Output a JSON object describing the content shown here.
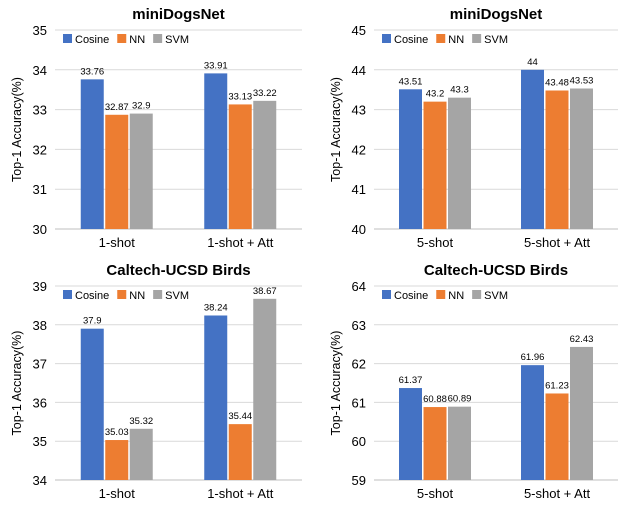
{
  "chart_data": [
    {
      "type": "bar",
      "title": "miniDogsNet",
      "ylabel": "Top-1 Accuracy(%)",
      "categories": [
        "1-shot",
        "1-shot + Att"
      ],
      "ylim": [
        30,
        35
      ],
      "yticks": [
        30,
        31,
        32,
        33,
        34,
        35
      ],
      "series": [
        {
          "name": "Cosine",
          "values": [
            33.76,
            33.91
          ],
          "labels": [
            "33.76",
            "33.91"
          ]
        },
        {
          "name": "NN",
          "values": [
            32.87,
            33.13
          ],
          "labels": [
            "32.87",
            "33.13"
          ]
        },
        {
          "name": "SVM",
          "values": [
            32.9,
            33.22
          ],
          "labels": [
            "32.9",
            "33.22"
          ]
        }
      ],
      "grid": true,
      "legend": "top-left"
    },
    {
      "type": "bar",
      "title": "miniDogsNet",
      "ylabel": "Top-1 Accuracy(%)",
      "categories": [
        "5-shot",
        "5-shot + Att"
      ],
      "ylim": [
        40,
        45
      ],
      "yticks": [
        40,
        41,
        42,
        43,
        44,
        45
      ],
      "series": [
        {
          "name": "Cosine",
          "values": [
            43.51,
            44
          ],
          "labels": [
            "43.51",
            "44"
          ]
        },
        {
          "name": "NN",
          "values": [
            43.2,
            43.48
          ],
          "labels": [
            "43.2",
            "43.48"
          ]
        },
        {
          "name": "SVM",
          "values": [
            43.3,
            43.53
          ],
          "labels": [
            "43.3",
            "43.53"
          ]
        }
      ],
      "grid": true,
      "legend": "top-left"
    },
    {
      "type": "bar",
      "title": "Caltech-UCSD Birds",
      "ylabel": "Top-1 Accuracy(%)",
      "categories": [
        "1-shot",
        "1-shot + Att"
      ],
      "ylim": [
        34,
        39
      ],
      "yticks": [
        34,
        35,
        36,
        37,
        38,
        39
      ],
      "series": [
        {
          "name": "Cosine",
          "values": [
            37.9,
            38.24
          ],
          "labels": [
            "37.9",
            "38.24"
          ]
        },
        {
          "name": "NN",
          "values": [
            35.03,
            35.44
          ],
          "labels": [
            "35.03",
            "35.44"
          ]
        },
        {
          "name": "SVM",
          "values": [
            35.32,
            38.67
          ],
          "labels": [
            "35.32",
            "38.67"
          ]
        }
      ],
      "grid": true,
      "legend": "top-left"
    },
    {
      "type": "bar",
      "title": "Caltech-UCSD Birds",
      "ylabel": "Top-1 Accuracy(%)",
      "categories": [
        "5-shot",
        "5-shot + Att"
      ],
      "ylim": [
        59,
        64
      ],
      "yticks": [
        59,
        60,
        61,
        62,
        63,
        64
      ],
      "series": [
        {
          "name": "Cosine",
          "values": [
            61.37,
            61.96
          ],
          "labels": [
            "61.37",
            "61.96"
          ]
        },
        {
          "name": "NN",
          "values": [
            60.88,
            61.23
          ],
          "labels": [
            "60.88",
            "61.23"
          ]
        },
        {
          "name": "SVM",
          "values": [
            60.89,
            62.43
          ],
          "labels": [
            "60.89",
            "62.43"
          ]
        }
      ],
      "grid": true,
      "legend": "top-left"
    }
  ],
  "colors": {
    "Cosine": "#4472c4",
    "NN": "#ed7d31",
    "SVM": "#a5a5a5",
    "grid": "#d9d9d9",
    "axis": "#bfbfbf"
  }
}
